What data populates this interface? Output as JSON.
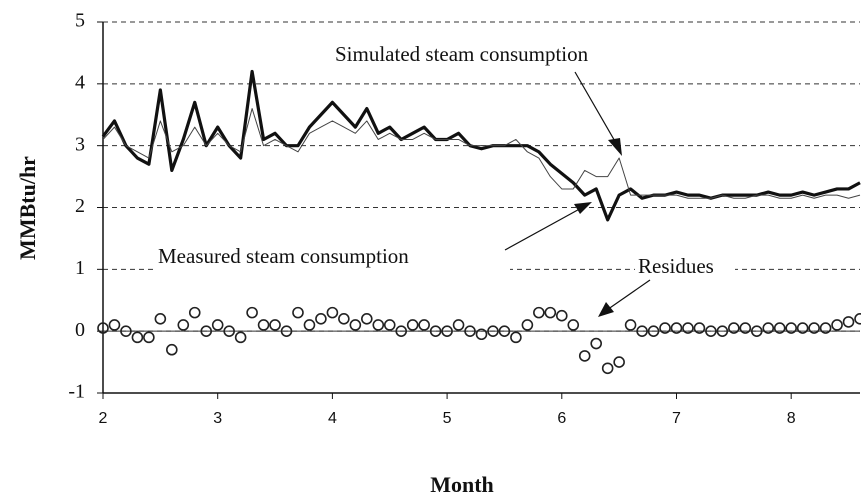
{
  "chart_data": {
    "type": "line",
    "xlabel": "Month",
    "ylabel": "MMBtu/hr",
    "annotations": [
      "Simulated steam consumption",
      "Measured steam consumption",
      "Residues"
    ],
    "xlim": [
      2,
      8.6
    ],
    "xticks": [
      2,
      3,
      4,
      5,
      6,
      7,
      8
    ],
    "ylim": [
      -1,
      5
    ],
    "yticks": [
      -1,
      0,
      1,
      2,
      3,
      4,
      5
    ],
    "grid": true,
    "x": [
      2,
      2.1,
      2.2,
      2.3,
      2.4,
      2.5,
      2.6,
      2.7,
      2.8,
      2.9,
      3,
      3.1,
      3.2,
      3.3,
      3.4,
      3.5,
      3.6,
      3.7,
      3.8,
      3.9,
      4,
      4.1,
      4.2,
      4.3,
      4.4,
      4.5,
      4.6,
      4.7,
      4.8,
      4.9,
      5,
      5.1,
      5.2,
      5.3,
      5.4,
      5.5,
      5.6,
      5.7,
      5.8,
      5.9,
      6,
      6.1,
      6.2,
      6.3,
      6.4,
      6.5,
      6.6,
      6.7,
      6.8,
      6.9,
      7,
      7.1,
      7.2,
      7.3,
      7.4,
      7.5,
      7.6,
      7.7,
      7.8,
      7.9,
      8,
      8.1,
      8.2,
      8.3,
      8.4,
      8.5,
      8.6
    ],
    "series": [
      {
        "name": "Measured steam consumption",
        "color": "#111111",
        "style": "thick",
        "values": [
          3.15,
          3.4,
          3.0,
          2.8,
          2.7,
          3.9,
          2.6,
          3.1,
          3.7,
          3.0,
          3.3,
          3.0,
          2.8,
          4.2,
          3.1,
          3.2,
          3.0,
          3.0,
          3.3,
          3.5,
          3.7,
          3.5,
          3.3,
          3.6,
          3.2,
          3.3,
          3.1,
          3.2,
          3.3,
          3.1,
          3.1,
          3.2,
          3.0,
          2.95,
          3.0,
          3.0,
          3.0,
          3.0,
          2.9,
          2.7,
          2.55,
          2.4,
          2.2,
          2.3,
          1.8,
          2.2,
          2.3,
          2.15,
          2.2,
          2.2,
          2.25,
          2.2,
          2.2,
          2.15,
          2.2,
          2.2,
          2.2,
          2.2,
          2.25,
          2.2,
          2.2,
          2.25,
          2.2,
          2.25,
          2.3,
          2.3,
          2.4
        ]
      },
      {
        "name": "Simulated steam consumption",
        "color": "#444444",
        "style": "thin",
        "values": [
          3.1,
          3.3,
          3.0,
          2.9,
          2.8,
          3.4,
          2.9,
          3.0,
          3.3,
          3.0,
          3.2,
          3.0,
          2.9,
          3.6,
          3.0,
          3.1,
          3.0,
          2.9,
          3.2,
          3.3,
          3.4,
          3.3,
          3.2,
          3.4,
          3.1,
          3.2,
          3.1,
          3.1,
          3.2,
          3.1,
          3.1,
          3.1,
          3.0,
          3.0,
          3.0,
          3.0,
          3.1,
          2.9,
          2.8,
          2.5,
          2.3,
          2.3,
          2.6,
          2.5,
          2.5,
          2.8,
          2.2,
          2.2,
          2.2,
          2.2,
          2.2,
          2.15,
          2.15,
          2.15,
          2.2,
          2.15,
          2.15,
          2.2,
          2.2,
          2.15,
          2.15,
          2.2,
          2.15,
          2.2,
          2.2,
          2.15,
          2.2
        ]
      },
      {
        "name": "Residues",
        "color": "#222222",
        "style": "circles",
        "values": [
          0.05,
          0.1,
          0.0,
          -0.1,
          -0.1,
          0.2,
          -0.3,
          0.1,
          0.3,
          0.0,
          0.1,
          0.0,
          -0.1,
          0.3,
          0.1,
          0.1,
          0.0,
          0.3,
          0.1,
          0.2,
          0.3,
          0.2,
          0.1,
          0.2,
          0.1,
          0.1,
          0.0,
          0.1,
          0.1,
          0.0,
          0.0,
          0.1,
          0.0,
          -0.05,
          0.0,
          0.0,
          -0.1,
          0.1,
          0.3,
          0.3,
          0.25,
          0.1,
          -0.4,
          -0.2,
          -0.6,
          -0.5,
          0.1,
          0.0,
          0.0,
          0.05,
          0.05,
          0.05,
          0.05,
          0.0,
          0.0,
          0.05,
          0.05,
          0.0,
          0.05,
          0.05,
          0.05,
          0.05,
          0.05,
          0.05,
          0.1,
          0.15,
          0.2
        ]
      }
    ]
  }
}
